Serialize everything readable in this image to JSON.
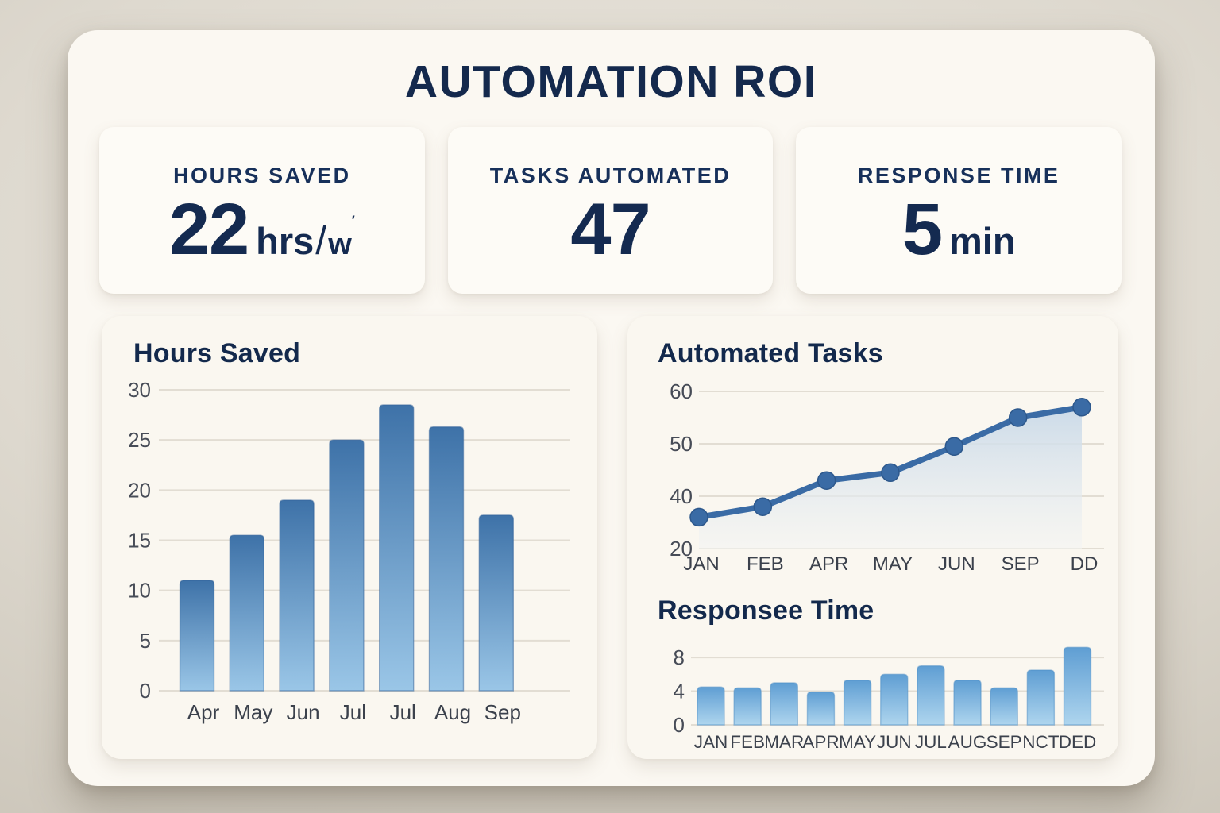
{
  "page_title": "AUTOMATION ROI",
  "kpis": [
    {
      "label": "HOURS SAVED",
      "value": "22",
      "unit": "hrs",
      "unit_slash": "/",
      "unit_small": "w",
      "unit_mark": "′"
    },
    {
      "label": "TASKS AUTOMATED",
      "value": "47"
    },
    {
      "label": "RESPONSE TIME",
      "value": "5",
      "unit": "min"
    }
  ],
  "chart_data": [
    {
      "type": "bar",
      "title": "Hours Saved",
      "categories": [
        "Apr",
        "May",
        "Jun",
        "Jul",
        "Jul",
        "Aug",
        "Sep"
      ],
      "values": [
        11,
        15.5,
        19,
        25,
        28.5,
        26.3,
        17.5
      ],
      "xlabel": "",
      "ylabel": "",
      "ylim": [
        0,
        30
      ],
      "yticks": [
        0,
        5,
        10,
        15,
        20,
        25,
        30
      ],
      "grid": true,
      "legend": "none"
    },
    {
      "type": "line",
      "title": "Automated Tasks",
      "categories": [
        "JAN",
        "FEB",
        "APR",
        "MAY",
        "JUN",
        "SEP",
        "DD"
      ],
      "values": [
        36,
        38,
        43,
        44.5,
        49.5,
        55,
        57
      ],
      "xlabel": "",
      "ylabel": "",
      "ylim": [
        30,
        60
      ],
      "ytick_labels_top_to_bottom": [
        "60",
        "50",
        "40",
        "20"
      ],
      "area_fill": true,
      "markers": true,
      "grid": true,
      "legend": "none"
    },
    {
      "type": "bar",
      "title": "Responsee Time",
      "categories": [
        "JAN",
        "FEB",
        "MAR",
        "APR",
        "MAY",
        "JUN",
        "JUL",
        "AUG",
        "SEP",
        "NCT",
        "DED"
      ],
      "values": [
        4.5,
        4.4,
        5,
        3.9,
        5.3,
        6,
        7,
        5.3,
        4.4,
        6.5,
        9.2
      ],
      "xlabel": "",
      "ylabel": "",
      "ylim": [
        0,
        9.8
      ],
      "yticks": [
        0,
        4,
        8
      ],
      "grid": true,
      "legend": "none"
    }
  ],
  "theme": {
    "navy": "#14294d",
    "grid_color": "#e2ddd3",
    "ytick_text": "#474c57",
    "xtick_text": "#3b414c",
    "bar_gradient_top": "#3e72a8",
    "bar_gradient_bottom": "#9ac6e7",
    "bar_stroke": "#2f6097",
    "bar_light_gradient_top": "#5f9ed3",
    "bar_light_gradient_bottom": "#aed5ee",
    "bar_light_stroke": "#4c8ec6",
    "line_color": "#3a6ba5",
    "marker_color": "#3a6ba5",
    "marker_stroke": "#2d588c",
    "area_fill_top": "#c9d9e8",
    "area_fill_bottom": "#f3f4f3"
  }
}
